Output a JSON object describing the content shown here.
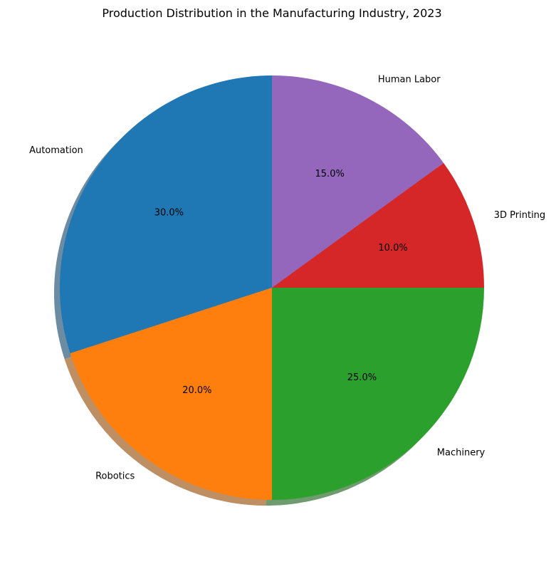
{
  "chart_data": {
    "type": "pie",
    "title": "Production Distribution in the Manufacturing Industry, 2023",
    "categories": [
      "Automation",
      "Robotics",
      "Machinery",
      "3D Printing",
      "Human Labor"
    ],
    "values": [
      30,
      20,
      25,
      10,
      15
    ],
    "percent_labels": [
      "30.0%",
      "20.0%",
      "25.0%",
      "10.0%",
      "15.0%"
    ],
    "colors": [
      "#1f77b4",
      "#ff7f0e",
      "#2ca02c",
      "#d62728",
      "#9467bd"
    ],
    "start_angle_deg": 90,
    "direction": "counterclockwise",
    "shadow": true
  }
}
